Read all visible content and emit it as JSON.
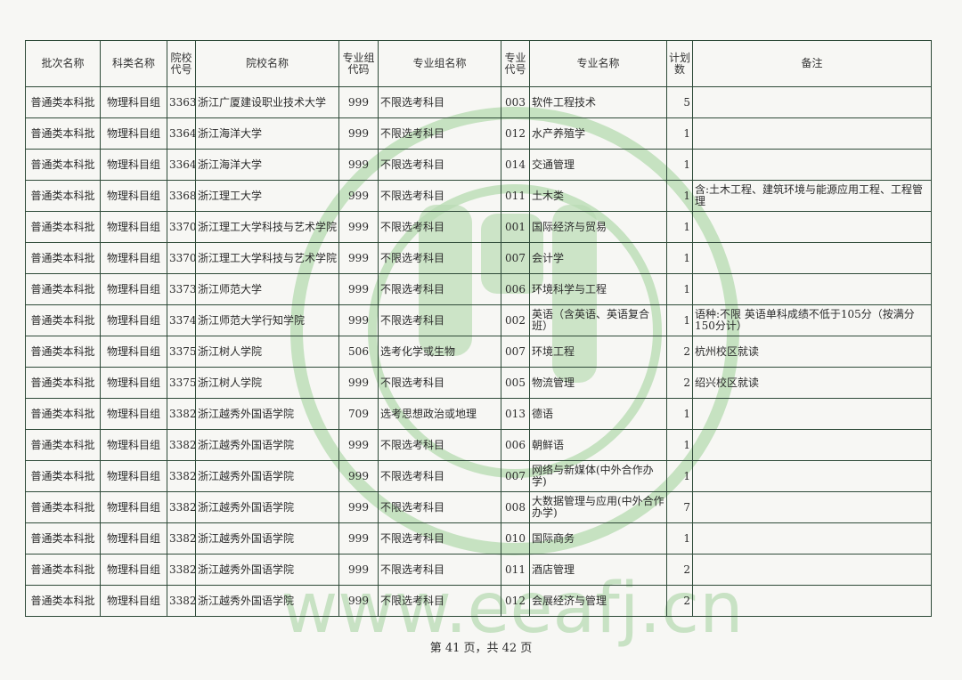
{
  "watermark": {
    "url": "www.eeafj.cn",
    "seal_color": "#9fcf9a"
  },
  "headers": [
    "批次名称",
    "科类名称",
    "院校代号",
    "院校名称",
    "专业组代码",
    "专业组名称",
    "专业代号",
    "专业名称",
    "计划数",
    "备注"
  ],
  "rows": [
    [
      "普通类本科批",
      "物理科目组",
      "3363",
      "浙江广厦建设职业技术大学",
      "999",
      "不限选考科目",
      "003",
      "软件工程技术",
      "5",
      ""
    ],
    [
      "普通类本科批",
      "物理科目组",
      "3364",
      "浙江海洋大学",
      "999",
      "不限选考科目",
      "012",
      "水产养殖学",
      "1",
      ""
    ],
    [
      "普通类本科批",
      "物理科目组",
      "3364",
      "浙江海洋大学",
      "999",
      "不限选考科目",
      "014",
      "交通管理",
      "1",
      ""
    ],
    [
      "普通类本科批",
      "物理科目组",
      "3368",
      "浙江理工大学",
      "999",
      "不限选考科目",
      "011",
      "土木类",
      "1",
      "含:土木工程、建筑环境与能源应用工程、工程管理"
    ],
    [
      "普通类本科批",
      "物理科目组",
      "3370",
      "浙江理工大学科技与艺术学院",
      "999",
      "不限选考科目",
      "001",
      "国际经济与贸易",
      "1",
      ""
    ],
    [
      "普通类本科批",
      "物理科目组",
      "3370",
      "浙江理工大学科技与艺术学院",
      "999",
      "不限选考科目",
      "007",
      "会计学",
      "1",
      ""
    ],
    [
      "普通类本科批",
      "物理科目组",
      "3373",
      "浙江师范大学",
      "999",
      "不限选考科目",
      "006",
      "环境科学与工程",
      "1",
      ""
    ],
    [
      "普通类本科批",
      "物理科目组",
      "3374",
      "浙江师范大学行知学院",
      "999",
      "不限选考科目",
      "002",
      "英语（含英语、英语复合班）",
      "1",
      "语种:不限  英语单科成绩不低于105分（按满分150分计）"
    ],
    [
      "普通类本科批",
      "物理科目组",
      "3375",
      "浙江树人学院",
      "506",
      "选考化学或生物",
      "007",
      "环境工程",
      "2",
      "杭州校区就读"
    ],
    [
      "普通类本科批",
      "物理科目组",
      "3375",
      "浙江树人学院",
      "999",
      "不限选考科目",
      "005",
      "物流管理",
      "2",
      "绍兴校区就读"
    ],
    [
      "普通类本科批",
      "物理科目组",
      "3382",
      "浙江越秀外国语学院",
      "709",
      "选考思想政治或地理",
      "013",
      "德语",
      "1",
      ""
    ],
    [
      "普通类本科批",
      "物理科目组",
      "3382",
      "浙江越秀外国语学院",
      "999",
      "不限选考科目",
      "006",
      "朝鲜语",
      "1",
      ""
    ],
    [
      "普通类本科批",
      "物理科目组",
      "3382",
      "浙江越秀外国语学院",
      "999",
      "不限选考科目",
      "007",
      "网络与新媒体(中外合作办学)",
      "1",
      ""
    ],
    [
      "普通类本科批",
      "物理科目组",
      "3382",
      "浙江越秀外国语学院",
      "999",
      "不限选考科目",
      "008",
      "大数据管理与应用(中外合作办学)",
      "7",
      ""
    ],
    [
      "普通类本科批",
      "物理科目组",
      "3382",
      "浙江越秀外国语学院",
      "999",
      "不限选考科目",
      "010",
      "国际商务",
      "1",
      ""
    ],
    [
      "普通类本科批",
      "物理科目组",
      "3382",
      "浙江越秀外国语学院",
      "999",
      "不限选考科目",
      "011",
      "酒店管理",
      "2",
      ""
    ],
    [
      "普通类本科批",
      "物理科目组",
      "3382",
      "浙江越秀外国语学院",
      "999",
      "不限选考科目",
      "012",
      "会展经济与管理",
      "2",
      ""
    ]
  ],
  "footer": "第 41 页，共 42 页"
}
